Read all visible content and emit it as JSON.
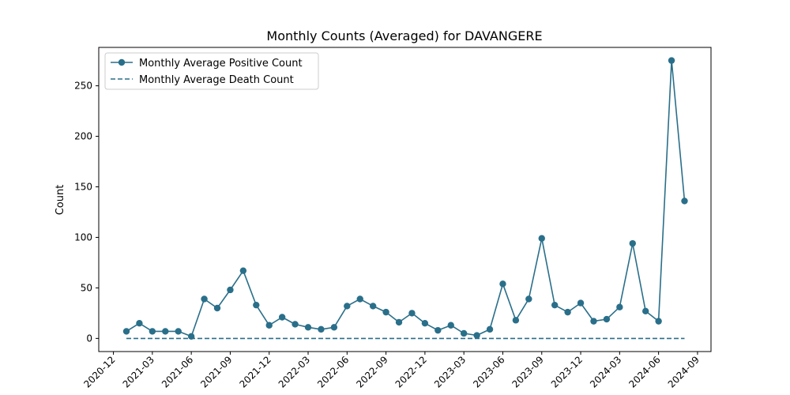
{
  "chart_data": {
    "type": "line",
    "title": "Monthly Counts (Averaged) for DAVANGERE",
    "xlabel": "",
    "ylabel": "Count",
    "x_ticks": [
      "2020-12",
      "2021-03",
      "2021-06",
      "2021-09",
      "2021-12",
      "2022-03",
      "2022-06",
      "2022-09",
      "2022-12",
      "2023-03",
      "2023-06",
      "2023-09",
      "2023-12",
      "2024-03",
      "2024-06",
      "2024-09"
    ],
    "y_ticks": [
      0,
      50,
      100,
      150,
      200,
      250
    ],
    "ylim": [
      -13,
      288
    ],
    "grid": false,
    "legend_position": "upper-left",
    "x": [
      "2021-01",
      "2021-02",
      "2021-03",
      "2021-04",
      "2021-05",
      "2021-06",
      "2021-07",
      "2021-08",
      "2021-09",
      "2021-10",
      "2021-11",
      "2021-12",
      "2022-01",
      "2022-02",
      "2022-03",
      "2022-04",
      "2022-05",
      "2022-06",
      "2022-07",
      "2022-08",
      "2022-09",
      "2022-10",
      "2022-11",
      "2022-12",
      "2023-01",
      "2023-02",
      "2023-03",
      "2023-04",
      "2023-05",
      "2023-06",
      "2023-07",
      "2023-08",
      "2023-09",
      "2023-10",
      "2023-11",
      "2023-12",
      "2024-01",
      "2024-02",
      "2024-03",
      "2024-04",
      "2024-05",
      "2024-06",
      "2024-07",
      "2024-08"
    ],
    "series": [
      {
        "name": "Monthly Average Positive Count",
        "style": "solid-with-markers",
        "color": "#2a6f8a",
        "values": [
          7,
          15,
          7,
          7,
          7,
          2,
          39,
          30,
          48,
          67,
          33,
          13,
          21,
          14,
          11,
          9,
          11,
          32,
          39,
          32,
          26,
          16,
          25,
          15,
          8,
          13,
          5,
          3,
          9,
          54,
          18,
          39,
          99,
          33,
          26,
          35,
          17,
          19,
          31,
          94,
          27,
          17,
          275,
          136
        ]
      },
      {
        "name": "Monthly Average Death Count",
        "style": "dashed",
        "color": "#2a6f8a",
        "values": [
          0,
          0,
          0,
          0,
          0,
          0,
          0,
          0,
          0,
          0,
          0,
          0,
          0,
          0,
          0,
          0,
          0,
          0,
          0,
          0,
          0,
          0,
          0,
          0,
          0,
          0,
          0,
          0,
          0,
          0,
          0,
          0,
          0,
          0,
          0,
          0,
          0,
          0,
          0,
          0,
          0,
          0,
          0,
          0
        ]
      }
    ]
  }
}
